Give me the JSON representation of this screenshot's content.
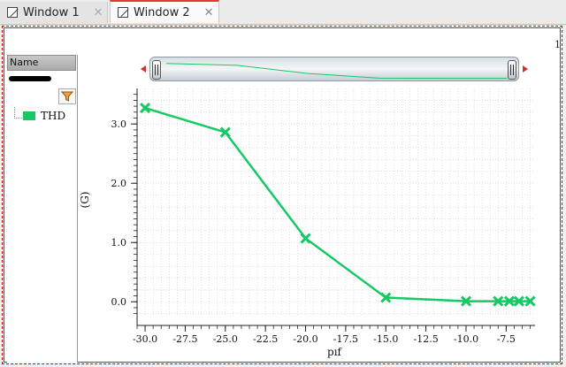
{
  "tabs": [
    {
      "label": "Window 1",
      "active": false
    },
    {
      "label": "Window 2",
      "active": true
    }
  ],
  "tab_close_glyph": "✕",
  "sidebar": {
    "header": "Name",
    "legend": [
      {
        "label": "THD",
        "color": "#17c964"
      }
    ]
  },
  "page_number": "1",
  "colors": {
    "series": "#17c964",
    "active_tab_accent": "#e53935",
    "frame_border": "#d50000"
  },
  "icons": [
    "window-icon",
    "close-icon",
    "filter-funnel-icon",
    "arrow-left-icon",
    "arrow-right-icon"
  ],
  "chart_data": {
    "type": "line",
    "xlabel": "pıf",
    "ylabel": "(G)",
    "xlim": [
      -30.5,
      -5.7
    ],
    "ylim": [
      -0.25,
      3.6
    ],
    "x_ticks": [
      -30.0,
      -27.5,
      -25.0,
      -22.5,
      -20.0,
      -17.5,
      -15.0,
      -12.5,
      -10.0,
      -7.5
    ],
    "x_tick_labels": [
      "-30.0",
      "-27.5",
      "-25.0",
      "-22.5",
      "-20.0",
      "-17.5",
      "-15.0",
      "-12.5",
      "-10.0",
      "-7.5"
    ],
    "y_ticks": [
      0,
      1,
      2,
      3
    ],
    "y_tick_labels": [
      "0.0",
      "1.0",
      "2.0",
      "3.0"
    ],
    "grid": true,
    "series": [
      {
        "name": "THD",
        "color": "#17c964",
        "marker": "x",
        "x": [
          -30,
          -25,
          -20,
          -15,
          -10,
          -8,
          -7.3,
          -6.7,
          -6
        ],
        "y": [
          3.27,
          2.86,
          1.07,
          0.07,
          0.01,
          0.01,
          0.01,
          0.01,
          0.01
        ]
      }
    ]
  }
}
